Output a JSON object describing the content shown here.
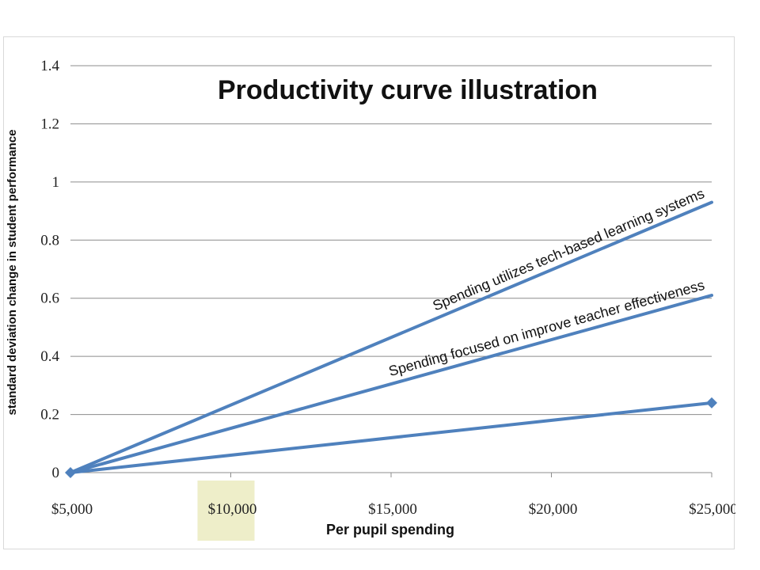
{
  "chart_data": {
    "type": "line",
    "title": "Productivity curve illustration",
    "xlabel": "Per pupil spending",
    "ylabel": "standard deviation change in student performance",
    "x": [
      5000,
      25000
    ],
    "x_tick_values": [
      5000,
      10000,
      15000,
      20000,
      25000
    ],
    "x_tick_labels": [
      "$5,000",
      "$10,000",
      "$15,000",
      "$20,000",
      "$25,000"
    ],
    "y_tick_values": [
      0,
      0.2,
      0.4,
      0.6,
      0.8,
      1,
      1.2,
      1.4
    ],
    "y_tick_labels": [
      "0",
      "0.2",
      "0.4",
      "0.6",
      "0.8",
      "1",
      "1.2",
      "1.4"
    ],
    "ylim": [
      0,
      1.4
    ],
    "grid": true,
    "highlight_tick": "$10,000",
    "series": [
      {
        "name": "Spending utilizes tech-based learning systems",
        "values": [
          0,
          0.93
        ],
        "markers": false
      },
      {
        "name": "Spending focused on improve teacher effectiveness",
        "values": [
          0,
          0.61
        ],
        "markers": false
      },
      {
        "name": "",
        "values": [
          0,
          0.24
        ],
        "markers": true
      }
    ]
  },
  "colors": {
    "line": "#4f81bd",
    "grid": "#8c8c8c",
    "highlight": "#eeeec9"
  }
}
